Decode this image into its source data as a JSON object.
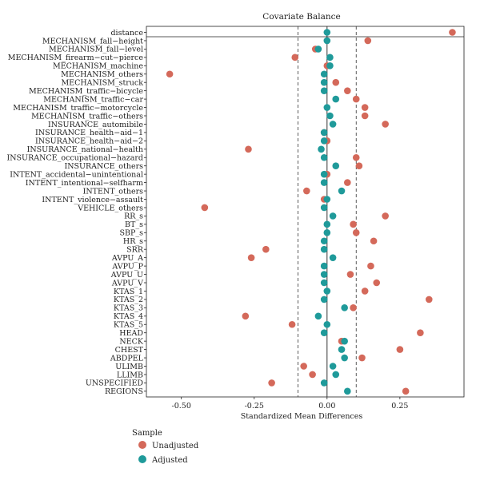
{
  "chart_data": {
    "type": "scatter",
    "title": "Covariate Balance",
    "xlabel": "Standardized Mean Differences",
    "ylabel": "",
    "xlim": [
      -0.62,
      0.47
    ],
    "xticks": [
      -0.5,
      -0.25,
      0,
      0.25
    ],
    "xtick_labels": [
      "-0.50",
      "-0.25",
      "0.00",
      "0.25"
    ],
    "threshold_lines": [
      -0.1,
      0,
      0.1
    ],
    "legend_title": "Sample",
    "legend_position": "bottom-left",
    "categories": [
      "distance",
      "MECHANISM_fall−height",
      "MECHANISM_fall−level",
      "MECHANISM_firearm−cut−pierce",
      "MECHANISM_machine",
      "MECHANISM_others",
      "MECHANISM_struck",
      "MECHANISM_traffic−bicycle",
      "MECHANISM_traffic−car",
      "MECHANISM_traffic−motorcycle",
      "MECHANISM_traffic−others",
      "INSURANCE_automibile",
      "INSURANCE_health−aid−1",
      "INSURANCE_health−aid−2",
      "INSURANCE_national−health",
      "INSURANCE_occupational−hazard",
      "INSURANCE_others",
      "INTENT_accidental−unintentional",
      "INTENT_intentional−selfharm",
      "INTENT_others",
      "INTENT_violence−assault",
      "VEHICLE_others",
      "RR_s",
      "BT_s",
      "SBP_s",
      "HR_s",
      "SRR",
      "AVPU_A",
      "AVPU_P",
      "AVPU_U",
      "AVPU_V",
      "KTAS_1",
      "KTAS_2",
      "KTAS_3",
      "KTAS_4",
      "KTAS_5",
      "HEAD",
      "NECK",
      "CHEST",
      "ABDPEL",
      "ULIMB",
      "LLIMB",
      "UNSPECIFIED",
      "REGIONS"
    ],
    "series": [
      {
        "name": "Unadjusted",
        "color": "#d4695a",
        "values": [
          0.43,
          0.14,
          -0.04,
          -0.11,
          0.0,
          -0.54,
          0.03,
          0.07,
          0.1,
          0.13,
          0.13,
          0.2,
          -0.01,
          0.0,
          -0.27,
          0.1,
          0.11,
          0.0,
          0.07,
          -0.07,
          -0.01,
          -0.42,
          0.2,
          0.09,
          0.1,
          0.16,
          -0.21,
          -0.26,
          0.15,
          0.08,
          0.17,
          0.13,
          0.35,
          0.09,
          -0.28,
          -0.12,
          0.32,
          0.05,
          0.25,
          0.12,
          -0.08,
          -0.05,
          -0.19,
          0.27
        ]
      },
      {
        "name": "Adjusted",
        "color": "#1f9a9a",
        "values": [
          0.0,
          0.0,
          -0.03,
          0.01,
          0.01,
          -0.01,
          -0.01,
          -0.01,
          0.03,
          0.0,
          0.01,
          0.02,
          -0.01,
          -0.01,
          -0.02,
          -0.01,
          0.03,
          -0.01,
          -0.01,
          0.05,
          0.0,
          -0.01,
          0.02,
          0.0,
          0.0,
          -0.01,
          -0.01,
          0.02,
          -0.01,
          -0.01,
          -0.01,
          0.0,
          -0.01,
          0.06,
          -0.03,
          0.0,
          -0.01,
          0.06,
          0.05,
          0.06,
          0.02,
          0.03,
          -0.01,
          0.07
        ]
      }
    ]
  }
}
